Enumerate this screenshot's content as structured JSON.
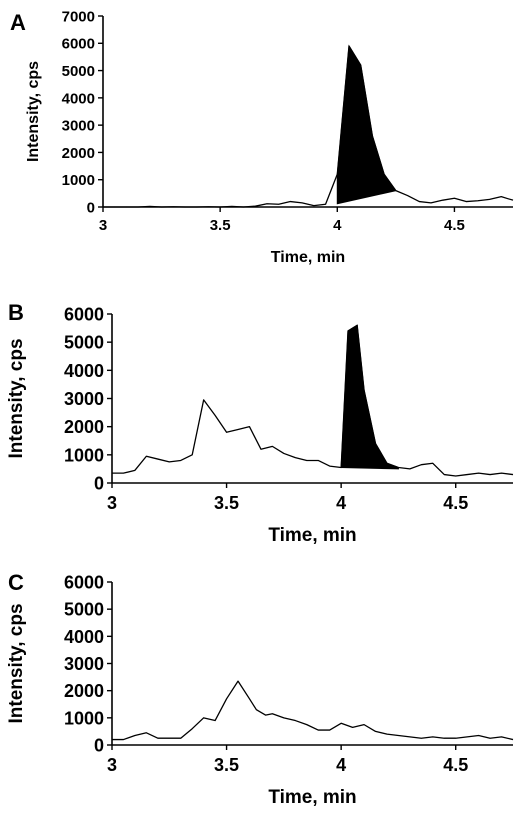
{
  "chart_data": [
    {
      "panel_label": "A",
      "type": "line",
      "xlabel": "Time, min",
      "ylabel": "Intensity, cps",
      "xlim": [
        3.0,
        4.75
      ],
      "ylim": [
        0,
        7000
      ],
      "x_ticks": [
        3,
        3.5,
        4,
        4.5
      ],
      "x_tick_labels": [
        "3",
        "3.5",
        "4",
        "4.5"
      ],
      "y_ticks": [
        0,
        1000,
        2000,
        3000,
        4000,
        5000,
        6000,
        7000
      ],
      "y_tick_labels": [
        "0",
        "1000",
        "2000",
        "3000",
        "4000",
        "5000",
        "6000",
        "7000"
      ],
      "x": [
        3.0,
        3.05,
        3.1,
        3.15,
        3.2,
        3.25,
        3.3,
        3.35,
        3.4,
        3.45,
        3.5,
        3.55,
        3.6,
        3.65,
        3.7,
        3.75,
        3.8,
        3.85,
        3.9,
        3.95,
        4.0,
        4.05,
        4.1,
        4.15,
        4.2,
        4.25,
        4.3,
        4.35,
        4.4,
        4.45,
        4.5,
        4.55,
        4.6,
        4.65,
        4.7,
        4.73,
        4.75
      ],
      "y": [
        0,
        0,
        0,
        0,
        20,
        0,
        10,
        0,
        0,
        10,
        0,
        20,
        0,
        30,
        120,
        100,
        200,
        150,
        50,
        100,
        1200,
        5900,
        5200,
        2600,
        1200,
        600,
        420,
        200,
        150,
        250,
        320,
        200,
        230,
        280,
        380,
        300,
        250
      ],
      "shaded_peak": {
        "x": [
          4.0,
          4.05,
          4.1,
          4.15,
          4.2,
          4.25
        ],
        "y": [
          1200,
          5900,
          5200,
          2600,
          1200,
          600
        ],
        "baseline": [
          120,
          600
        ]
      },
      "fill_color": "#000000",
      "line_color": "#000000"
    },
    {
      "panel_label": "B",
      "type": "line",
      "xlabel": "Time, min",
      "ylabel": "Intensity, cps",
      "xlim": [
        3.0,
        4.75
      ],
      "ylim": [
        0,
        6000
      ],
      "x_ticks": [
        3,
        3.5,
        4,
        4.5
      ],
      "x_tick_labels": [
        "3",
        "3.5",
        "4",
        "4.5"
      ],
      "y_ticks": [
        0,
        1000,
        2000,
        3000,
        4000,
        5000,
        6000
      ],
      "y_tick_labels": [
        "0",
        "1000",
        "2000",
        "3000",
        "4000",
        "5000",
        "6000"
      ],
      "x": [
        3.0,
        3.05,
        3.1,
        3.15,
        3.2,
        3.25,
        3.3,
        3.35,
        3.4,
        3.45,
        3.5,
        3.55,
        3.6,
        3.65,
        3.7,
        3.75,
        3.8,
        3.85,
        3.9,
        3.95,
        4.0,
        4.03,
        4.07,
        4.1,
        4.15,
        4.2,
        4.25,
        4.3,
        4.35,
        4.4,
        4.45,
        4.5,
        4.55,
        4.6,
        4.65,
        4.7,
        4.75
      ],
      "y": [
        350,
        350,
        450,
        950,
        850,
        750,
        800,
        1000,
        2950,
        2400,
        1800,
        1900,
        2000,
        1200,
        1300,
        1050,
        900,
        800,
        800,
        600,
        550,
        5400,
        5600,
        3300,
        1400,
        700,
        550,
        500,
        650,
        700,
        300,
        250,
        300,
        350,
        300,
        350,
        300
      ],
      "shaded_peak": {
        "x": [
          4.0,
          4.03,
          4.07,
          4.1,
          4.15,
          4.2,
          4.25
        ],
        "y": [
          550,
          5400,
          5600,
          3300,
          1400,
          700,
          550
        ],
        "baseline": [
          550,
          500
        ]
      },
      "fill_color": "#000000",
      "line_color": "#000000"
    },
    {
      "panel_label": "C",
      "type": "line",
      "xlabel": "Time, min",
      "ylabel": "Intensity, cps",
      "xlim": [
        3.0,
        4.75
      ],
      "ylim": [
        0,
        6000
      ],
      "x_ticks": [
        3,
        3.5,
        4,
        4.5
      ],
      "x_tick_labels": [
        "3",
        "3.5",
        "4",
        "4.5"
      ],
      "y_ticks": [
        0,
        1000,
        2000,
        3000,
        4000,
        5000,
        6000
      ],
      "y_tick_labels": [
        "0",
        "1000",
        "2000",
        "3000",
        "4000",
        "5000",
        "6000"
      ],
      "x": [
        3.0,
        3.05,
        3.1,
        3.15,
        3.2,
        3.25,
        3.3,
        3.35,
        3.4,
        3.45,
        3.5,
        3.55,
        3.6,
        3.63,
        3.67,
        3.7,
        3.75,
        3.8,
        3.85,
        3.9,
        3.95,
        4.0,
        4.05,
        4.1,
        4.15,
        4.2,
        4.25,
        4.3,
        4.35,
        4.4,
        4.45,
        4.5,
        4.55,
        4.6,
        4.65,
        4.7,
        4.75
      ],
      "y": [
        200,
        200,
        350,
        450,
        250,
        250,
        250,
        600,
        1000,
        900,
        1700,
        2350,
        1700,
        1300,
        1100,
        1150,
        1000,
        900,
        750,
        550,
        550,
        800,
        650,
        750,
        500,
        400,
        350,
        300,
        250,
        300,
        250,
        250,
        300,
        350,
        250,
        300,
        200
      ],
      "shaded_peak": null,
      "fill_color": "#000000",
      "line_color": "#000000"
    }
  ]
}
